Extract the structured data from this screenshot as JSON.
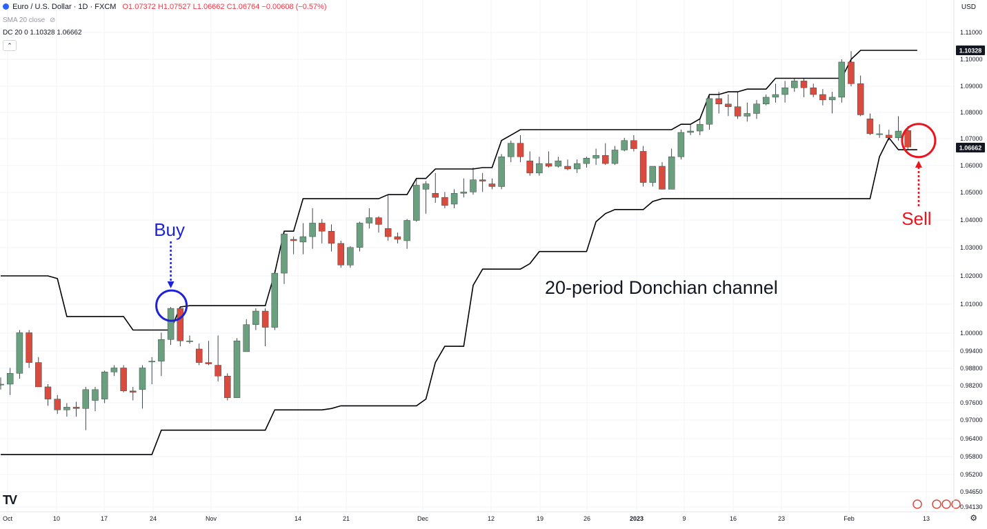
{
  "header": {
    "symbol": "Euro / U.S. Dollar · 1D · FXCM",
    "open": "O1.07372",
    "high": "H1.07527",
    "low": "L1.06662",
    "close": "C1.06764",
    "change": "−0.00608 (−0.57%)",
    "indicator_sma": "SMA 20 close",
    "indicator_dc": "DC 20 0  1.10328  1.06662",
    "currency": "USD",
    "collapse_glyph": "⌃"
  },
  "colors": {
    "up": "#6a9f7f",
    "down": "#d94b3e",
    "channel": "#000000",
    "buy": "#1e22d6",
    "sell": "#e8141e"
  },
  "chart_data": {
    "type": "candlestick",
    "title": "",
    "xlabel": "",
    "ylabel": "",
    "y_axis_labels": [
      "1.11000",
      "1.10000",
      "1.09000",
      "1.08000",
      "1.07000",
      "1.06000",
      "1.05000",
      "1.04000",
      "1.03000",
      "1.02000",
      "1.01000",
      "1.00000",
      "0.99400",
      "0.98800",
      "0.98200",
      "0.97600",
      "0.97000",
      "0.96400",
      "0.95800",
      "0.95200",
      "0.94650",
      "0.94130"
    ],
    "x_axis_labels": [
      "Oct",
      "10",
      "17",
      "24",
      "Nov",
      "14",
      "21",
      "Dec",
      "12",
      "19",
      "26",
      "2023",
      "9",
      "16",
      "23",
      "Feb",
      "13"
    ],
    "price_badges": [
      "1.10328",
      "1.06662"
    ],
    "candles": [
      {
        "o": 0.98,
        "h": 0.9825,
        "l": 0.978,
        "c": 0.98
      },
      {
        "o": 0.98,
        "h": 0.986,
        "l": 0.976,
        "c": 0.984
      },
      {
        "o": 0.984,
        "h": 1.0,
        "l": 0.982,
        "c": 0.999
      },
      {
        "o": 0.999,
        "h": 1.0,
        "l": 0.986,
        "c": 0.988
      },
      {
        "o": 0.988,
        "h": 0.99,
        "l": 0.979,
        "c": 0.979
      },
      {
        "o": 0.979,
        "h": 0.98,
        "l": 0.972,
        "c": 0.9745
      },
      {
        "o": 0.9745,
        "h": 0.976,
        "l": 0.969,
        "c": 0.9705
      },
      {
        "o": 0.9705,
        "h": 0.973,
        "l": 0.968,
        "c": 0.9715
      },
      {
        "o": 0.9715,
        "h": 0.9735,
        "l": 0.968,
        "c": 0.971
      },
      {
        "o": 0.971,
        "h": 0.979,
        "l": 0.963,
        "c": 0.978
      },
      {
        "o": 0.974,
        "h": 0.979,
        "l": 0.97,
        "c": 0.978
      },
      {
        "o": 0.9745,
        "h": 0.985,
        "l": 0.973,
        "c": 0.9845
      },
      {
        "o": 0.9845,
        "h": 0.987,
        "l": 0.983,
        "c": 0.986
      },
      {
        "o": 0.986,
        "h": 0.987,
        "l": 0.977,
        "c": 0.9775
      },
      {
        "o": 0.9775,
        "h": 0.979,
        "l": 0.974,
        "c": 0.977
      },
      {
        "o": 0.978,
        "h": 0.987,
        "l": 0.971,
        "c": 0.986
      },
      {
        "o": 0.9885,
        "h": 0.99,
        "l": 0.98,
        "c": 0.9885
      },
      {
        "o": 0.9885,
        "h": 0.999,
        "l": 0.983,
        "c": 0.9965
      },
      {
        "o": 0.9965,
        "h": 1.0085,
        "l": 0.9945,
        "c": 1.008
      },
      {
        "o": 1.008,
        "h": 1.0085,
        "l": 0.994,
        "c": 0.996
      },
      {
        "o": 0.996,
        "h": 0.998,
        "l": 0.995,
        "c": 0.996
      },
      {
        "o": 0.993,
        "h": 0.995,
        "l": 0.987,
        "c": 0.988
      },
      {
        "o": 0.988,
        "h": 0.996,
        "l": 0.987,
        "c": 0.9875
      },
      {
        "o": 0.987,
        "h": 0.998,
        "l": 0.981,
        "c": 0.983
      },
      {
        "o": 0.983,
        "h": 0.984,
        "l": 0.974,
        "c": 0.975
      },
      {
        "o": 0.975,
        "h": 0.997,
        "l": 0.975,
        "c": 0.996
      },
      {
        "o": 0.992,
        "h": 1.004,
        "l": 0.992,
        "c": 1.002
      },
      {
        "o": 1.002,
        "h": 1.008,
        "l": 1.0,
        "c": 1.007
      },
      {
        "o": 1.007,
        "h": 1.008,
        "l": 0.994,
        "c": 1.001
      },
      {
        "o": 1.001,
        "h": 1.022,
        "l": 1.0,
        "c": 1.021
      },
      {
        "o": 1.021,
        "h": 1.0365,
        "l": 1.017,
        "c": 1.0355
      },
      {
        "o": 1.0335,
        "h": 1.0345,
        "l": 1.028,
        "c": 1.033
      },
      {
        "o": 1.0325,
        "h": 1.0395,
        "l": 1.028,
        "c": 1.0345
      },
      {
        "o": 1.0345,
        "h": 1.045,
        "l": 1.03,
        "c": 1.0395
      },
      {
        "o": 1.0395,
        "h": 1.041,
        "l": 1.032,
        "c": 1.0365
      },
      {
        "o": 1.0365,
        "h": 1.039,
        "l": 1.029,
        "c": 1.032
      },
      {
        "o": 1.032,
        "h": 1.033,
        "l": 1.023,
        "c": 1.024
      },
      {
        "o": 1.024,
        "h": 1.031,
        "l": 1.023,
        "c": 1.0305
      },
      {
        "o": 1.0305,
        "h": 1.04,
        "l": 1.029,
        "c": 1.0395
      },
      {
        "o": 1.0395,
        "h": 1.045,
        "l": 1.0375,
        "c": 1.0415
      },
      {
        "o": 1.0415,
        "h": 1.042,
        "l": 1.036,
        "c": 1.039
      },
      {
        "o": 1.0375,
        "h": 1.05,
        "l": 1.033,
        "c": 1.0345
      },
      {
        "o": 1.0345,
        "h": 1.036,
        "l": 1.032,
        "c": 1.0335
      },
      {
        "o": 1.033,
        "h": 1.041,
        "l": 1.03,
        "c": 1.0405
      },
      {
        "o": 1.0405,
        "h": 1.056,
        "l": 1.04,
        "c": 1.0535
      },
      {
        "o": 1.052,
        "h": 1.055,
        "l": 1.043,
        "c": 1.054
      },
      {
        "o": 1.0505,
        "h": 1.058,
        "l": 1.047,
        "c": 1.049
      },
      {
        "o": 1.049,
        "h": 1.051,
        "l": 1.045,
        "c": 1.046
      },
      {
        "o": 1.0465,
        "h": 1.052,
        "l": 1.045,
        "c": 1.0505
      },
      {
        "o": 1.0505,
        "h": 1.056,
        "l": 1.049,
        "c": 1.051
      },
      {
        "o": 1.051,
        "h": 1.06,
        "l": 1.05,
        "c": 1.0555
      },
      {
        "o": 1.0555,
        "h": 1.058,
        "l": 1.051,
        "c": 1.055
      },
      {
        "o": 1.054,
        "h": 1.056,
        "l": 1.052,
        "c": 1.053
      },
      {
        "o": 1.053,
        "h": 1.065,
        "l": 1.052,
        "c": 1.064
      },
      {
        "o": 1.064,
        "h": 1.07,
        "l": 1.062,
        "c": 1.069
      },
      {
        "o": 1.069,
        "h": 1.072,
        "l": 1.062,
        "c": 1.064
      },
      {
        "o": 1.0625,
        "h": 1.066,
        "l": 1.057,
        "c": 1.058
      },
      {
        "o": 1.058,
        "h": 1.064,
        "l": 1.057,
        "c": 1.0615
      },
      {
        "o": 1.0615,
        "h": 1.066,
        "l": 1.06,
        "c": 1.0605
      },
      {
        "o": 1.0605,
        "h": 1.064,
        "l": 1.06,
        "c": 1.0625
      },
      {
        "o": 1.0605,
        "h": 1.063,
        "l": 1.059,
        "c": 1.0595
      },
      {
        "o": 1.0595,
        "h": 1.063,
        "l": 1.058,
        "c": 1.0615
      },
      {
        "o": 1.0615,
        "h": 1.064,
        "l": 1.06,
        "c": 1.0635
      },
      {
        "o": 1.0635,
        "h": 1.067,
        "l": 1.061,
        "c": 1.0645
      },
      {
        "o": 1.0645,
        "h": 1.069,
        "l": 1.061,
        "c": 1.0615
      },
      {
        "o": 1.0615,
        "h": 1.068,
        "l": 1.061,
        "c": 1.0665
      },
      {
        "o": 1.0665,
        "h": 1.071,
        "l": 1.066,
        "c": 1.07
      },
      {
        "o": 1.07,
        "h": 1.072,
        "l": 1.066,
        "c": 1.067
      },
      {
        "o": 1.066,
        "h": 1.068,
        "l": 1.053,
        "c": 1.0545
      },
      {
        "o": 1.0545,
        "h": 1.06,
        "l": 1.053,
        "c": 1.0605
      },
      {
        "o": 1.0605,
        "h": 1.062,
        "l": 1.053,
        "c": 1.052
      },
      {
        "o": 1.052,
        "h": 1.067,
        "l": 1.052,
        "c": 1.064
      },
      {
        "o": 1.064,
        "h": 1.074,
        "l": 1.063,
        "c": 1.073
      },
      {
        "o": 1.073,
        "h": 1.076,
        "l": 1.072,
        "c": 1.0735
      },
      {
        "o": 1.0735,
        "h": 1.078,
        "l": 1.072,
        "c": 1.076
      },
      {
        "o": 1.076,
        "h": 1.087,
        "l": 1.074,
        "c": 1.0855
      },
      {
        "o": 1.0855,
        "h": 1.088,
        "l": 1.08,
        "c": 1.0835
      },
      {
        "o": 1.0835,
        "h": 1.087,
        "l": 1.079,
        "c": 1.0825
      },
      {
        "o": 1.0825,
        "h": 1.088,
        "l": 1.078,
        "c": 1.079
      },
      {
        "o": 1.079,
        "h": 1.084,
        "l": 1.077,
        "c": 1.08
      },
      {
        "o": 1.08,
        "h": 1.085,
        "l": 1.078,
        "c": 1.0835
      },
      {
        "o": 1.0835,
        "h": 1.087,
        "l": 1.083,
        "c": 1.086
      },
      {
        "o": 1.086,
        "h": 1.091,
        "l": 1.084,
        "c": 1.087
      },
      {
        "o": 1.087,
        "h": 1.092,
        "l": 1.084,
        "c": 1.0895
      },
      {
        "o": 1.0895,
        "h": 1.093,
        "l": 1.088,
        "c": 1.092
      },
      {
        "o": 1.092,
        "h": 1.093,
        "l": 1.086,
        "c": 1.0895
      },
      {
        "o": 1.0895,
        "h": 1.091,
        "l": 1.086,
        "c": 1.087
      },
      {
        "o": 1.087,
        "h": 1.089,
        "l": 1.083,
        "c": 1.085
      },
      {
        "o": 1.085,
        "h": 1.088,
        "l": 1.08,
        "c": 1.086
      },
      {
        "o": 1.086,
        "h": 1.1,
        "l": 1.084,
        "c": 1.099
      },
      {
        "o": 1.099,
        "h": 1.103,
        "l": 1.09,
        "c": 1.091
      },
      {
        "o": 1.091,
        "h": 1.094,
        "l": 1.079,
        "c": 1.0795
      },
      {
        "o": 1.078,
        "h": 1.08,
        "l": 1.072,
        "c": 1.0725
      },
      {
        "o": 1.0725,
        "h": 1.076,
        "l": 1.071,
        "c": 1.0725
      },
      {
        "o": 1.072,
        "h": 1.074,
        "l": 1.07,
        "c": 1.071
      },
      {
        "o": 1.071,
        "h": 1.079,
        "l": 1.07,
        "c": 1.0735
      },
      {
        "o": 1.0737,
        "h": 1.0753,
        "l": 1.0666,
        "c": 1.0676
      }
    ],
    "donchian_upper": [
      1.02,
      1.02,
      1.02,
      1.02,
      1.02,
      1.02,
      1.019,
      1.005,
      1.005,
      1.005,
      1.005,
      1.005,
      1.005,
      1.005,
      1.0,
      1.0,
      1.0,
      1.0,
      1.0,
      1.0085,
      1.009,
      1.009,
      1.009,
      1.009,
      1.009,
      1.009,
      1.009,
      1.009,
      1.009,
      1.021,
      1.0365,
      1.0365,
      1.0485,
      1.0485,
      1.0485,
      1.0485,
      1.0485,
      1.0485,
      1.0485,
      1.0485,
      1.0485,
      1.05,
      1.05,
      1.05,
      1.056,
      1.056,
      1.0595,
      1.0595,
      1.0595,
      1.0595,
      1.0595,
      1.06,
      1.06,
      1.07,
      1.072,
      1.074,
      1.074,
      1.074,
      1.074,
      1.074,
      1.074,
      1.074,
      1.074,
      1.074,
      1.074,
      1.074,
      1.074,
      1.074,
      1.074,
      1.074,
      1.074,
      1.074,
      1.076,
      1.076,
      1.078,
      1.087,
      1.087,
      1.088,
      1.088,
      1.089,
      1.089,
      1.089,
      1.093,
      1.093,
      1.093,
      1.093,
      1.093,
      1.093,
      1.093,
      1.093,
      1.1,
      1.1033,
      1.1033,
      1.1033,
      1.1033,
      1.1033,
      1.1033,
      1.1033
    ],
    "donchian_lower": [
      0.954,
      0.954,
      0.954,
      0.954,
      0.954,
      0.954,
      0.954,
      0.954,
      0.954,
      0.954,
      0.954,
      0.954,
      0.954,
      0.954,
      0.954,
      0.954,
      0.954,
      0.963,
      0.963,
      0.963,
      0.963,
      0.963,
      0.963,
      0.963,
      0.963,
      0.963,
      0.963,
      0.963,
      0.963,
      0.9705,
      0.9705,
      0.9705,
      0.9705,
      0.9705,
      0.9705,
      0.971,
      0.972,
      0.972,
      0.972,
      0.972,
      0.972,
      0.972,
      0.972,
      0.972,
      0.972,
      0.9745,
      0.988,
      0.994,
      0.994,
      0.994,
      1.0165,
      1.0225,
      1.0225,
      1.0225,
      1.0225,
      1.0225,
      1.0245,
      1.029,
      1.029,
      1.029,
      1.029,
      1.029,
      1.029,
      1.04,
      1.043,
      1.0445,
      1.0445,
      1.0445,
      1.0445,
      1.0475,
      1.0485,
      1.0485,
      1.0485,
      1.0485,
      1.0485,
      1.0485,
      1.0485,
      1.0485,
      1.0485,
      1.0485,
      1.0485,
      1.0485,
      1.0485,
      1.0485,
      1.0485,
      1.0485,
      1.0485,
      1.0485,
      1.0485,
      1.0485,
      1.0485,
      1.0485,
      1.0485,
      1.064,
      1.071,
      1.0666,
      1.0666,
      1.0666
    ],
    "annotations": {
      "buy_label": "Buy",
      "sell_label": "Sell",
      "channel_label": "20-period Donchian channel",
      "buy_index": 18,
      "sell_index": 97
    }
  }
}
